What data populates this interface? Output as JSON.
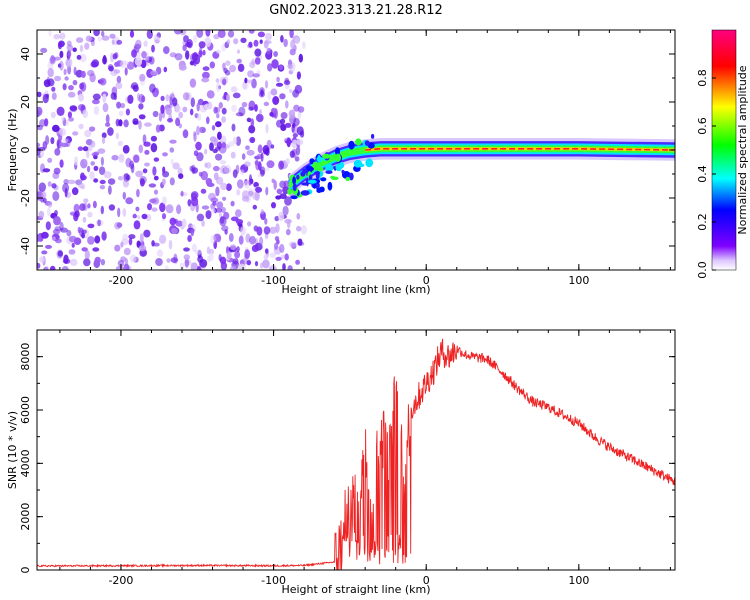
{
  "title": "GN02.2023.313.21.28.R12",
  "colors": {
    "snr_line": "#ee2222",
    "noise_purple": "#6a1ee8",
    "axis": "#000000"
  },
  "chart_data": [
    {
      "type": "heatmap",
      "xlabel": "Height of straight line (km)",
      "ylabel": "Frequency (Hz)",
      "xlim": [
        -255,
        163
      ],
      "ylim": [
        -50,
        50
      ],
      "xticks": [
        -200,
        -100,
        0,
        100
      ],
      "yticks": [
        -40,
        -20,
        0,
        20,
        40
      ],
      "xtick_labels": [
        "-200",
        "-100",
        "0",
        "100"
      ],
      "ytick_labels": [
        "-40",
        "-20",
        "0",
        "20",
        "40"
      ],
      "noise_region_x": [
        -255,
        -80
      ],
      "signal_track": {
        "x": [
          -90,
          -80,
          -70,
          -60,
          -50,
          -40,
          -30,
          -20,
          -10,
          0,
          50,
          100,
          163
        ],
        "freq": [
          -15,
          -10,
          -6,
          -3,
          -1,
          0,
          0.5,
          0.5,
          0.5,
          0.5,
          0.5,
          0.5,
          0
        ],
        "amplitude": [
          0.2,
          0.4,
          0.5,
          0.5,
          0.6,
          0.8,
          0.9,
          0.95,
          0.95,
          1.0,
          1.0,
          0.95,
          0.7
        ]
      },
      "colorbar": {
        "label": "Normalized spectral amplitude",
        "range": [
          0,
          1
        ],
        "ticks": [
          0.0,
          0.2,
          0.4,
          0.6,
          0.8
        ],
        "tick_labels": [
          "0.0",
          "0.2",
          "0.4",
          "0.6",
          "0.8"
        ],
        "colors": [
          "#ffffff",
          "#7f00ff",
          "#0000ff",
          "#00ffff",
          "#00ff00",
          "#ffff00",
          "#ff0000",
          "#ff0080"
        ]
      }
    },
    {
      "type": "line",
      "xlabel": "Height of straight line (km)",
      "ylabel": "SNR (10 * v/v)",
      "xlim": [
        -255,
        163
      ],
      "ylim": [
        0,
        9000
      ],
      "xticks": [
        -200,
        -100,
        0,
        100
      ],
      "yticks": [
        0,
        2000,
        4000,
        6000,
        8000
      ],
      "xtick_labels": [
        "-200",
        "-100",
        "0",
        "100"
      ],
      "ytick_labels": [
        "0",
        "2000",
        "4000",
        "6000",
        "8000"
      ],
      "series": [
        {
          "x": [
            -255,
            -200,
            -150,
            -100,
            -80,
            -60,
            -55,
            -50,
            -45,
            -40,
            -35,
            -30,
            -25,
            -20,
            -15,
            -10,
            -5,
            0,
            5,
            10,
            15,
            20,
            25,
            30,
            40,
            50,
            60,
            70,
            80,
            90,
            100,
            110,
            120,
            130,
            140,
            150,
            163
          ],
          "y": [
            150,
            160,
            170,
            160,
            170,
            300,
            1000,
            3000,
            2000,
            5000,
            3000,
            5500,
            4000,
            6500,
            3500,
            6000,
            6500,
            7000,
            7500,
            8200,
            8000,
            8300,
            8100,
            8000,
            7900,
            7400,
            6800,
            6300,
            6100,
            5800,
            5500,
            5000,
            4600,
            4300,
            4000,
            3700,
            3300
          ]
        }
      ]
    }
  ]
}
